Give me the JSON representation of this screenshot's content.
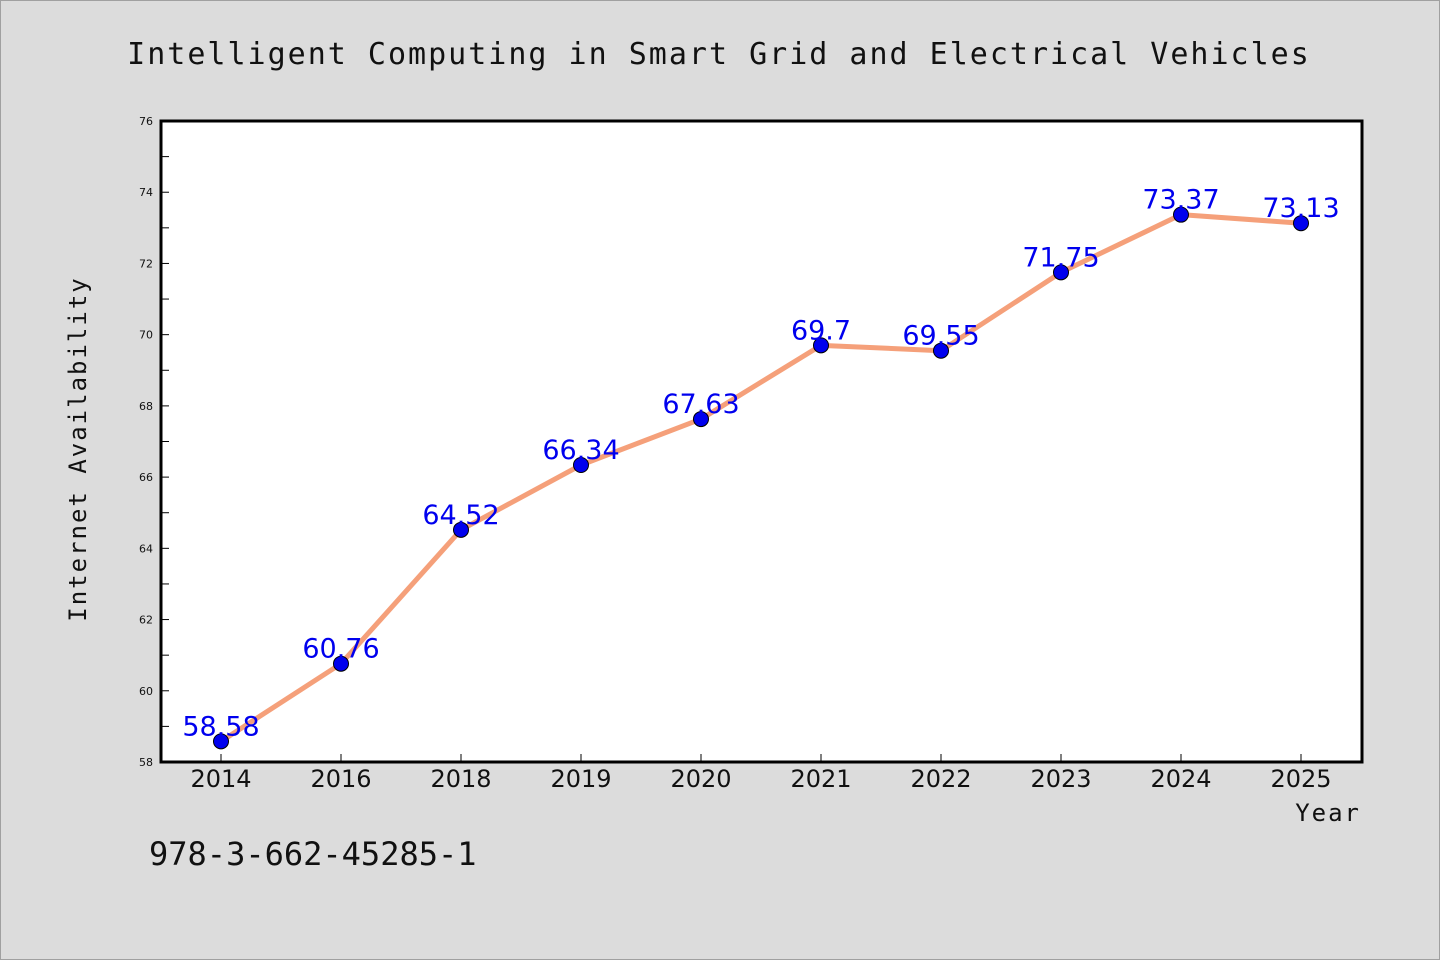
{
  "chart_data": {
    "type": "line",
    "title": "Intelligent Computing in Smart Grid and Electrical Vehicles",
    "xlabel": "Year",
    "ylabel": "Internet Availability",
    "categories": [
      "2014",
      "2016",
      "2018",
      "2019",
      "2020",
      "2021",
      "2022",
      "2023",
      "2024",
      "2025"
    ],
    "values": [
      58.58,
      60.76,
      64.52,
      66.34,
      67.63,
      69.7,
      69.55,
      71.75,
      73.37,
      73.13
    ],
    "data_labels": [
      "58.58",
      "60.76",
      "64.52",
      "66.34",
      "67.63",
      "69.7",
      "69.55",
      "71.75",
      "73.37",
      "73.13"
    ],
    "ylim": [
      58,
      76
    ],
    "y_ticks": [
      "58",
      "60",
      "62",
      "64",
      "66",
      "68",
      "70",
      "72",
      "74",
      "76"
    ],
    "grid": false,
    "legend": "none",
    "colors": {
      "line": "#f5a07a",
      "marker": "#0000ee",
      "label": "#0000ee",
      "background": "#dcdcdc",
      "plot_background": "#ffffff"
    }
  },
  "footer": {
    "isbn": "978-3-662-45285-1"
  }
}
